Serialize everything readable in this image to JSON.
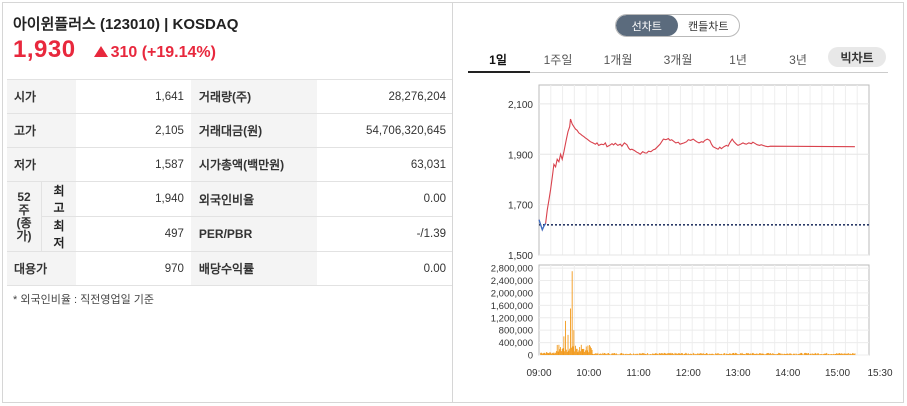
{
  "stock": {
    "title": "아이윈플러스 (123010) | KOSDAQ",
    "price": "1,930",
    "change": "310 (+19.14%)"
  },
  "info": {
    "open_label": "시가",
    "open_value": "1,641",
    "volume_label": "거래량(주)",
    "volume_value": "28,276,204",
    "high_label": "고가",
    "high_value": "2,105",
    "amount_label": "거래대금(원)",
    "amount_value": "54,706,320,645",
    "low_label": "저가",
    "low_value": "1,587",
    "mcap_label": "시가총액(백만원)",
    "mcap_value": "63,031",
    "week52_label": "52주\n(종가)",
    "w52_high_label": "최고",
    "w52_high_value": "1,940",
    "foreign_label": "외국인비율",
    "foreign_value": "0.00",
    "w52_low_label": "최저",
    "w52_low_value": "497",
    "per_label": "PER/PBR",
    "per_value": "-/1.39",
    "sub_label": "대용가",
    "sub_value": "970",
    "div_label": "배당수익률",
    "div_value": "0.00",
    "note": "* 외국인비율 : 직전영업일 기준"
  },
  "chart_toggle": {
    "line_label": "선차트",
    "candle_label": "캔들차트"
  },
  "periods": {
    "items": [
      "1일",
      "1주일",
      "1개월",
      "3개월",
      "1년",
      "3년"
    ],
    "active": 0,
    "bar_label": "빅차트"
  },
  "colors": {
    "up": "#e8283d",
    "line": "#d9424d",
    "down": "#3a6fc4",
    "volume": "#f29a1c",
    "baseline": "#2b3a67"
  },
  "chart_data": {
    "type": "line",
    "price": {
      "y_ticks": [
        "2,100",
        "1,900",
        "1,700",
        "1,500"
      ],
      "y_tick_values": [
        2100,
        1900,
        1700,
        1500
      ],
      "ylim": [
        1500,
        2175
      ],
      "prev_close": 1620,
      "points": [
        [
          0,
          1640
        ],
        [
          2,
          1620
        ],
        [
          4,
          1600
        ],
        [
          6,
          1615
        ],
        [
          8,
          1625
        ],
        [
          10,
          1680
        ],
        [
          12,
          1720
        ],
        [
          14,
          1760
        ],
        [
          16,
          1810
        ],
        [
          18,
          1860
        ],
        [
          20,
          1850
        ],
        [
          22,
          1880
        ],
        [
          24,
          1870
        ],
        [
          26,
          1900
        ],
        [
          28,
          1880
        ],
        [
          30,
          1910
        ],
        [
          33,
          1960
        ],
        [
          35,
          1990
        ],
        [
          37,
          2010
        ],
        [
          38,
          2040
        ],
        [
          40,
          2020
        ],
        [
          42,
          2010
        ],
        [
          44,
          2000
        ],
        [
          46,
          1995
        ],
        [
          48,
          1985
        ],
        [
          50,
          1980
        ],
        [
          52,
          1975
        ],
        [
          54,
          1970
        ],
        [
          56,
          1965
        ],
        [
          58,
          1960
        ],
        [
          60,
          1955
        ],
        [
          62,
          1950
        ],
        [
          65,
          1945
        ],
        [
          68,
          1940
        ],
        [
          70,
          1945
        ],
        [
          72,
          1935
        ],
        [
          75,
          1940
        ],
        [
          78,
          1938
        ],
        [
          80,
          1945
        ],
        [
          82,
          1930
        ],
        [
          85,
          1935
        ],
        [
          88,
          1942
        ],
        [
          90,
          1937
        ],
        [
          92,
          1944
        ],
        [
          95,
          1935
        ],
        [
          98,
          1940
        ],
        [
          100,
          1932
        ],
        [
          103,
          1945
        ],
        [
          106,
          1938
        ],
        [
          108,
          1925
        ],
        [
          110,
          1918
        ],
        [
          112,
          1920
        ],
        [
          115,
          1915
        ],
        [
          118,
          1908
        ],
        [
          120,
          1905
        ],
        [
          122,
          1900
        ],
        [
          125,
          1910
        ],
        [
          128,
          1905
        ],
        [
          130,
          1905
        ],
        [
          132,
          1912
        ],
        [
          135,
          1910
        ],
        [
          138,
          1918
        ],
        [
          140,
          1920
        ],
        [
          143,
          1930
        ],
        [
          146,
          1940
        ],
        [
          148,
          1950
        ],
        [
          150,
          1960
        ],
        [
          153,
          1958
        ],
        [
          156,
          1962
        ],
        [
          158,
          1955
        ],
        [
          160,
          1958
        ],
        [
          163,
          1950
        ],
        [
          165,
          1945
        ],
        [
          168,
          1948
        ],
        [
          170,
          1940
        ],
        [
          172,
          1942
        ],
        [
          175,
          1945
        ],
        [
          178,
          1950
        ],
        [
          180,
          1958
        ],
        [
          183,
          1955
        ],
        [
          186,
          1960
        ],
        [
          188,
          1955
        ],
        [
          190,
          1950
        ],
        [
          193,
          1945
        ],
        [
          196,
          1950
        ],
        [
          198,
          1948
        ],
        [
          200,
          1955
        ],
        [
          203,
          1960
        ],
        [
          206,
          1955
        ],
        [
          208,
          1940
        ],
        [
          210,
          1930
        ],
        [
          213,
          1925
        ],
        [
          216,
          1920
        ],
        [
          218,
          1928
        ],
        [
          220,
          1922
        ],
        [
          223,
          1930
        ],
        [
          226,
          1935
        ],
        [
          228,
          1932
        ],
        [
          230,
          1945
        ],
        [
          233,
          1960
        ],
        [
          235,
          1950
        ],
        [
          238,
          1940
        ],
        [
          240,
          1935
        ],
        [
          243,
          1940
        ],
        [
          246,
          1945
        ],
        [
          248,
          1942
        ],
        [
          250,
          1940
        ],
        [
          253,
          1945
        ],
        [
          256,
          1942
        ],
        [
          258,
          1948
        ],
        [
          260,
          1944
        ],
        [
          263,
          1938
        ],
        [
          266,
          1935
        ],
        [
          268,
          1938
        ],
        [
          270,
          1935
        ],
        [
          273,
          1932
        ],
        [
          276,
          1930
        ],
        [
          279,
          1932
        ],
        [
          381,
          1930
        ]
      ]
    },
    "volume": {
      "y_ticks": [
        "2,800,000",
        "2,400,000",
        "2,000,000",
        "1,600,000",
        "1,200,000",
        "800,000",
        "400,000",
        "0"
      ],
      "y_tick_values": [
        2800000,
        2400000,
        2000000,
        1600000,
        1200000,
        800000,
        400000,
        0
      ],
      "ylim": [
        0,
        2900000
      ],
      "spikes": [
        [
          30,
          600000
        ],
        [
          32,
          1100000
        ],
        [
          35,
          650000
        ],
        [
          38,
          1500000
        ],
        [
          40,
          2700000
        ],
        [
          42,
          800000
        ],
        [
          44,
          300000
        ],
        [
          46,
          200000
        ],
        [
          48,
          150000
        ],
        [
          50,
          120000
        ],
        [
          55,
          100000
        ],
        [
          60,
          90000
        ]
      ]
    },
    "x_ticks": [
      "09:00",
      "10:00",
      "11:00",
      "12:00",
      "13:00",
      "14:00",
      "15:00",
      "15:30"
    ],
    "x_tick_minutes": [
      0,
      60,
      120,
      180,
      240,
      300,
      360,
      390
    ]
  }
}
